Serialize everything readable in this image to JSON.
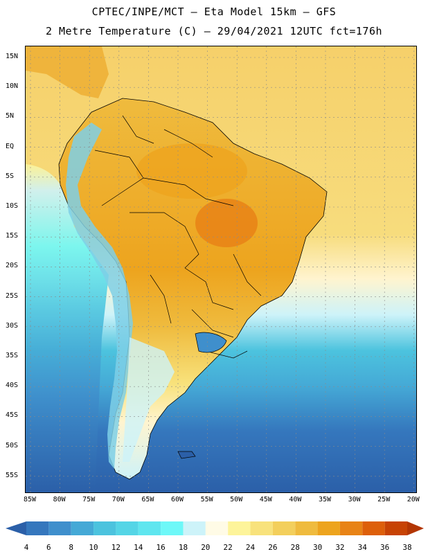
{
  "title": {
    "line1": "CPTEC/INPE/MCT –  Eta Model 15km – GFS",
    "line2": "2 Metre Temperature (C) – 29/04/2021 12UTC fct=176h"
  },
  "lat_labels": [
    "15N",
    "10N",
    "5N",
    "EQ",
    "5S",
    "10S",
    "15S",
    "20S",
    "25S",
    "30S",
    "35S",
    "40S",
    "45S",
    "50S",
    "55S"
  ],
  "lon_labels": [
    "85W",
    "80W",
    "75W",
    "70W",
    "65W",
    "60W",
    "55W",
    "50W",
    "45W",
    "40W",
    "35W",
    "30W",
    "25W",
    "20W"
  ],
  "colorbar": {
    "labels": [
      "4",
      "6",
      "8",
      "10",
      "12",
      "14",
      "16",
      "18",
      "20",
      "22",
      "24",
      "26",
      "28",
      "30",
      "32",
      "34",
      "36",
      "38"
    ],
    "colors": [
      "#2b5fa8",
      "#3577bd",
      "#3f8fcc",
      "#45a9d6",
      "#4cc3de",
      "#55d5e6",
      "#5fe6ef",
      "#6ef8f8",
      "#cdf3f9",
      "#fffbe6",
      "#fdf49a",
      "#f8e27c",
      "#f3cf5c",
      "#efbb3e",
      "#eda41e",
      "#e88316",
      "#dd5f0a",
      "#c74304",
      "#b33603"
    ]
  },
  "map_colors": {
    "ocean_north": "#f6d56a",
    "ocean_south_deep": "#2b5fa8",
    "land_warm": "#efb43c",
    "land_hot": "#e88316",
    "andes": "#7ecfe6",
    "grid": "#8a8a8a"
  }
}
